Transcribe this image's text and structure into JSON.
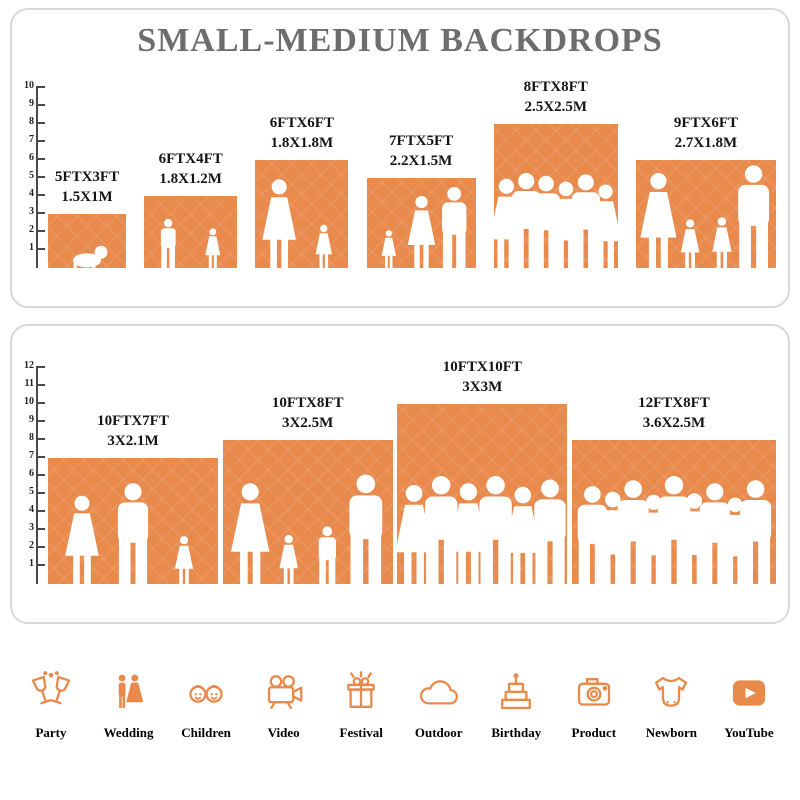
{
  "accent_color": "#E98A4D",
  "title": "SMALL-MEDIUM BACKDROPS",
  "panels": [
    {
      "id": "small-medium",
      "ruler_ticks": [
        1,
        2,
        3,
        4,
        5,
        6,
        7,
        8,
        9,
        10
      ],
      "backdrops": [
        {
          "size_ft": "5FTX3FT",
          "size_m": "1.5X1M",
          "width_ft": 5,
          "height_ft": 3,
          "figures": [
            {
              "type": "baby",
              "h": 0.5
            }
          ]
        },
        {
          "size_ft": "6FTX4FT",
          "size_m": "1.8X1.2M",
          "width_ft": 6,
          "height_ft": 4,
          "figures": [
            {
              "type": "boy",
              "h": 0.68
            },
            {
              "type": "girl",
              "h": 0.55
            }
          ]
        },
        {
          "size_ft": "6FTX6FT",
          "size_m": "1.8X1.8M",
          "width_ft": 6,
          "height_ft": 6,
          "figures": [
            {
              "type": "female",
              "h": 0.82
            },
            {
              "type": "girl",
              "h": 0.4
            }
          ]
        },
        {
          "size_ft": "7FTX5FT",
          "size_m": "2.2X1.5M",
          "width_ft": 7,
          "height_ft": 5,
          "figures": [
            {
              "type": "girl",
              "h": 0.42
            },
            {
              "type": "female",
              "h": 0.8
            },
            {
              "type": "male",
              "h": 0.9
            }
          ]
        },
        {
          "size_ft": "8FTX8FT",
          "size_m": "2.5X2.5M",
          "width_ft": 8,
          "height_ft": 8,
          "figures": [
            {
              "type": "female",
              "h": 0.62
            },
            {
              "type": "male",
              "h": 0.66
            },
            {
              "type": "male",
              "h": 0.64
            },
            {
              "type": "female",
              "h": 0.6
            },
            {
              "type": "male",
              "h": 0.65
            },
            {
              "type": "female",
              "h": 0.58
            }
          ]
        },
        {
          "size_ft": "9FTX6FT",
          "size_m": "2.7X1.8M",
          "width_ft": 9,
          "height_ft": 6,
          "figures": [
            {
              "type": "female",
              "h": 0.88
            },
            {
              "type": "girl",
              "h": 0.45
            },
            {
              "type": "girl",
              "h": 0.47
            },
            {
              "type": "male",
              "h": 0.95
            }
          ]
        }
      ]
    },
    {
      "id": "large",
      "ruler_ticks": [
        1,
        2,
        3,
        4,
        5,
        6,
        7,
        8,
        9,
        10,
        11,
        12
      ],
      "backdrops": [
        {
          "size_ft": "10FTX7FT",
          "size_m": "3X2.1M",
          "width_ft": 10,
          "height_ft": 7,
          "figures": [
            {
              "type": "female",
              "h": 0.7
            },
            {
              "type": "male",
              "h": 0.8
            },
            {
              "type": "girl",
              "h": 0.38
            }
          ]
        },
        {
          "size_ft": "10FTX8FT",
          "size_m": "3X2.5M",
          "width_ft": 10,
          "height_ft": 8,
          "figures": [
            {
              "type": "female",
              "h": 0.7
            },
            {
              "type": "girl",
              "h": 0.34
            },
            {
              "type": "boy",
              "h": 0.4
            },
            {
              "type": "male",
              "h": 0.76
            }
          ]
        },
        {
          "size_ft": "10FTX10FT",
          "size_m": "3X3M",
          "width_ft": 10,
          "height_ft": 10,
          "figures": [
            {
              "type": "female",
              "h": 0.55
            },
            {
              "type": "male",
              "h": 0.6
            },
            {
              "type": "female",
              "h": 0.56
            },
            {
              "type": "male",
              "h": 0.6
            },
            {
              "type": "female",
              "h": 0.54
            },
            {
              "type": "male",
              "h": 0.58
            }
          ]
        },
        {
          "size_ft": "12FTX8FT",
          "size_m": "3.6X2.5M",
          "width_ft": 12,
          "height_ft": 8,
          "figures": [
            {
              "type": "male",
              "h": 0.68
            },
            {
              "type": "female",
              "h": 0.64
            },
            {
              "type": "male",
              "h": 0.72
            },
            {
              "type": "female",
              "h": 0.62
            },
            {
              "type": "male",
              "h": 0.75
            },
            {
              "type": "female",
              "h": 0.63
            },
            {
              "type": "male",
              "h": 0.7
            },
            {
              "type": "female",
              "h": 0.6
            },
            {
              "type": "male",
              "h": 0.72
            }
          ]
        }
      ]
    }
  ],
  "categories": [
    {
      "label": "Party",
      "icon": "party-icon"
    },
    {
      "label": "Wedding",
      "icon": "wedding-icon"
    },
    {
      "label": "Children",
      "icon": "children-icon"
    },
    {
      "label": "Video",
      "icon": "video-icon"
    },
    {
      "label": "Festival",
      "icon": "festival-icon"
    },
    {
      "label": "Outdoor",
      "icon": "outdoor-icon"
    },
    {
      "label": "Birthday",
      "icon": "birthday-icon"
    },
    {
      "label": "Product",
      "icon": "product-icon"
    },
    {
      "label": "Newborn",
      "icon": "newborn-icon"
    },
    {
      "label": "YouTube",
      "icon": "youtube-icon"
    }
  ]
}
